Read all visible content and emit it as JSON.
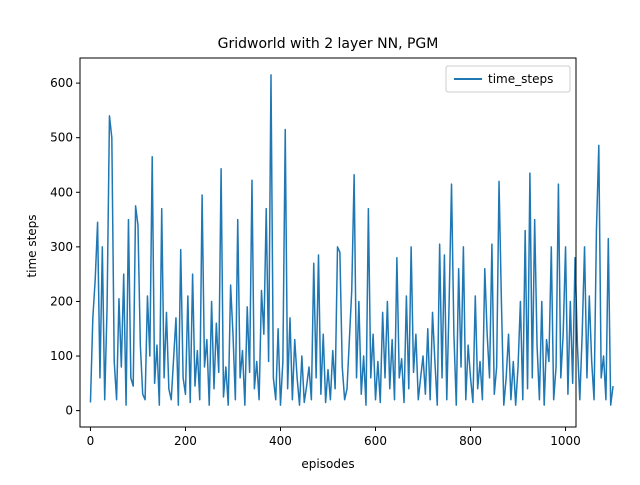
{
  "chart_data": {
    "type": "line",
    "title": "Gridworld with 2 layer NN, PGM",
    "xlabel": "episodes",
    "ylabel": "time steps",
    "xlim": [
      -22,
      1022
    ],
    "ylim": [
      -30,
      646
    ],
    "xticks": [
      0,
      200,
      400,
      600,
      800,
      1000
    ],
    "yticks": [
      0,
      100,
      200,
      300,
      400,
      500,
      600
    ],
    "xtick_labels": [
      "0",
      "200",
      "400",
      "600",
      "800",
      "1000"
    ],
    "ytick_labels": [
      "0",
      "100",
      "200",
      "300",
      "400",
      "500",
      "600"
    ],
    "grid": false,
    "legend": {
      "position": "top-right",
      "entries": [
        "time_steps"
      ]
    },
    "colors": {
      "series": "#1f77b4",
      "axes": "#000000",
      "background": "#ffffff"
    },
    "series": [
      {
        "name": "time_steps",
        "x_start": 0,
        "x_step": 5,
        "values": [
          15,
          170,
          240,
          345,
          60,
          300,
          20,
          190,
          540,
          500,
          90,
          20,
          205,
          80,
          250,
          10,
          350,
          60,
          45,
          375,
          340,
          120,
          30,
          20,
          210,
          100,
          465,
          50,
          120,
          10,
          370,
          60,
          180,
          40,
          20,
          95,
          170,
          10,
          295,
          60,
          30,
          210,
          15,
          250,
          45,
          110,
          20,
          395,
          80,
          130,
          10,
          200,
          40,
          160,
          70,
          443,
          25,
          80,
          10,
          230,
          140,
          20,
          350,
          60,
          110,
          10,
          190,
          70,
          422,
          40,
          90,
          20,
          220,
          140,
          370,
          90,
          615,
          60,
          20,
          150,
          10,
          90,
          515,
          40,
          170,
          20,
          130,
          60,
          10,
          100,
          15,
          45,
          80,
          20,
          270,
          60,
          285,
          30,
          140,
          15,
          75,
          20,
          110,
          40,
          300,
          290,
          80,
          20,
          40,
          130,
          220,
          432,
          60,
          200,
          30,
          100,
          10,
          370,
          60,
          140,
          20,
          90,
          15,
          180,
          60,
          200,
          40,
          130,
          20,
          280,
          60,
          95,
          15,
          210,
          40,
          300,
          70,
          140,
          20,
          60,
          100,
          30,
          150,
          20,
          180,
          90,
          10,
          305,
          60,
          285,
          20,
          200,
          415,
          140,
          10,
          260,
          80,
          300,
          20,
          120,
          60,
          15,
          210,
          40,
          90,
          20,
          260,
          140,
          60,
          305,
          30,
          80,
          420,
          200,
          10,
          60,
          140,
          20,
          90,
          10,
          80,
          200,
          20,
          330,
          40,
          435,
          60,
          350,
          120,
          20,
          200,
          10,
          130,
          90,
          300,
          20,
          80,
          415,
          60,
          140,
          300,
          30,
          200,
          50,
          280,
          120,
          20,
          140,
          300,
          60,
          210,
          90,
          20,
          330,
          486,
          60,
          100,
          20,
          315,
          10,
          45
        ]
      }
    ]
  }
}
